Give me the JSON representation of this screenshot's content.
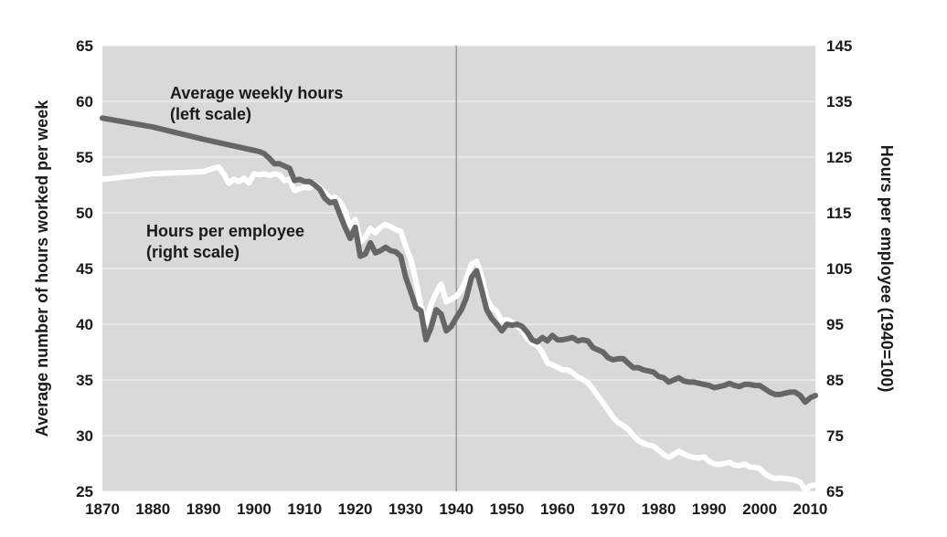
{
  "chart_data": {
    "type": "line",
    "xlim": [
      1870,
      2011
    ],
    "x_ticks": [
      "1870",
      "1880",
      "1890",
      "1900",
      "1910",
      "1920",
      "1930",
      "1940",
      "1950",
      "1960",
      "1970",
      "1980",
      "1990",
      "2000",
      "2010"
    ],
    "ylim_left": [
      25,
      65
    ],
    "y_ticks_left": [
      "25",
      "30",
      "35",
      "40",
      "45",
      "50",
      "55",
      "60",
      "65"
    ],
    "ylim_right": [
      65,
      145
    ],
    "y_ticks_right": [
      "65",
      "75",
      "85",
      "95",
      "105",
      "115",
      "125",
      "135",
      "145"
    ],
    "ylabel_left": "Average number of hours worked per week",
    "ylabel_right": "Hours per employee (1940=100)",
    "grid": true,
    "reference_line_x": 1940,
    "annotations": [
      {
        "series": "weekly",
        "lines": [
          "Average weekly hours",
          "(left scale)"
        ]
      },
      {
        "series": "employee",
        "lines": [
          "Hours per employee",
          "(right scale)"
        ]
      }
    ],
    "series": [
      {
        "axis": "left",
        "color": "#666666",
        "points": [
          [
            1870,
            58.5
          ],
          [
            1880,
            57.7
          ],
          [
            1890,
            56.6
          ],
          [
            1900,
            55.6
          ],
          [
            1901,
            55.5
          ],
          [
            1902,
            55.3
          ],
          [
            1903,
            54.9
          ],
          [
            1904,
            54.4
          ],
          [
            1905,
            54.4
          ],
          [
            1906,
            54.2
          ],
          [
            1907,
            54.0
          ],
          [
            1908,
            52.9
          ],
          [
            1909,
            53.0
          ],
          [
            1910,
            52.8
          ],
          [
            1911,
            52.8
          ],
          [
            1912,
            52.5
          ],
          [
            1913,
            52.1
          ],
          [
            1914,
            51.3
          ],
          [
            1915,
            50.9
          ],
          [
            1916,
            51.0
          ],
          [
            1917,
            49.8
          ],
          [
            1918,
            48.7
          ],
          [
            1919,
            47.7
          ],
          [
            1920,
            48.7
          ],
          [
            1921,
            46.1
          ],
          [
            1922,
            46.3
          ],
          [
            1923,
            47.3
          ],
          [
            1924,
            46.4
          ],
          [
            1925,
            46.6
          ],
          [
            1926,
            46.9
          ],
          [
            1927,
            46.6
          ],
          [
            1928,
            46.5
          ],
          [
            1929,
            46.1
          ],
          [
            1930,
            44.2
          ],
          [
            1931,
            42.9
          ],
          [
            1932,
            41.5
          ],
          [
            1933,
            41.2
          ],
          [
            1934,
            38.6
          ],
          [
            1935,
            39.7
          ],
          [
            1936,
            41.3
          ],
          [
            1937,
            40.9
          ],
          [
            1938,
            39.4
          ],
          [
            1939,
            39.8
          ],
          [
            1940,
            40.6
          ],
          [
            1941,
            41.3
          ],
          [
            1942,
            42.4
          ],
          [
            1943,
            44.2
          ],
          [
            1944,
            44.8
          ],
          [
            1945,
            43.1
          ],
          [
            1946,
            41.3
          ],
          [
            1947,
            40.5
          ],
          [
            1948,
            40.0
          ],
          [
            1949,
            39.4
          ],
          [
            1950,
            40.0
          ],
          [
            1951,
            39.9
          ],
          [
            1952,
            40.0
          ],
          [
            1953,
            39.8
          ],
          [
            1954,
            39.3
          ],
          [
            1955,
            38.6
          ],
          [
            1956,
            38.4
          ],
          [
            1957,
            38.8
          ],
          [
            1958,
            38.5
          ],
          [
            1959,
            39.0
          ],
          [
            1960,
            38.6
          ],
          [
            1961,
            38.6
          ],
          [
            1962,
            38.7
          ],
          [
            1963,
            38.8
          ],
          [
            1964,
            38.5
          ],
          [
            1965,
            38.6
          ],
          [
            1966,
            38.5
          ],
          [
            1967,
            37.9
          ],
          [
            1968,
            37.7
          ],
          [
            1969,
            37.5
          ],
          [
            1970,
            37.0
          ],
          [
            1971,
            36.8
          ],
          [
            1972,
            36.9
          ],
          [
            1973,
            36.9
          ],
          [
            1974,
            36.5
          ],
          [
            1975,
            36.1
          ],
          [
            1976,
            36.1
          ],
          [
            1977,
            35.9
          ],
          [
            1978,
            35.8
          ],
          [
            1979,
            35.7
          ],
          [
            1980,
            35.3
          ],
          [
            1981,
            35.2
          ],
          [
            1982,
            34.8
          ],
          [
            1983,
            35.0
          ],
          [
            1984,
            35.2
          ],
          [
            1985,
            34.9
          ],
          [
            1986,
            34.8
          ],
          [
            1987,
            34.8
          ],
          [
            1988,
            34.7
          ],
          [
            1989,
            34.6
          ],
          [
            1990,
            34.5
          ],
          [
            1991,
            34.3
          ],
          [
            1992,
            34.4
          ],
          [
            1993,
            34.5
          ],
          [
            1994,
            34.7
          ],
          [
            1995,
            34.5
          ],
          [
            1996,
            34.4
          ],
          [
            1997,
            34.6
          ],
          [
            1998,
            34.6
          ],
          [
            1999,
            34.5
          ],
          [
            2000,
            34.5
          ],
          [
            2001,
            34.2
          ],
          [
            2002,
            33.9
          ],
          [
            2003,
            33.7
          ],
          [
            2004,
            33.7
          ],
          [
            2005,
            33.8
          ],
          [
            2006,
            33.9
          ],
          [
            2007,
            33.9
          ],
          [
            2008,
            33.6
          ],
          [
            2009,
            33.0
          ],
          [
            2010,
            33.4
          ],
          [
            2011,
            33.6
          ]
        ]
      },
      {
        "axis": "right",
        "color": "#ffffff",
        "points": [
          [
            1870,
            121.0
          ],
          [
            1875,
            121.5
          ],
          [
            1880,
            122.0
          ],
          [
            1885,
            122.2
          ],
          [
            1890,
            122.4
          ],
          [
            1892,
            123.0
          ],
          [
            1893,
            123.2
          ],
          [
            1894,
            122.0
          ],
          [
            1895,
            120.3
          ],
          [
            1896,
            121.0
          ],
          [
            1897,
            120.6
          ],
          [
            1898,
            121.2
          ],
          [
            1899,
            120.4
          ],
          [
            1900,
            122.0
          ],
          [
            1901,
            121.8
          ],
          [
            1902,
            122.0
          ],
          [
            1903,
            121.7
          ],
          [
            1904,
            122.0
          ],
          [
            1905,
            121.8
          ],
          [
            1906,
            120.8
          ],
          [
            1907,
            121.0
          ],
          [
            1908,
            119.0
          ],
          [
            1909,
            119.3
          ],
          [
            1910,
            119.6
          ],
          [
            1911,
            119.5
          ],
          [
            1912,
            120.2
          ],
          [
            1913,
            119.5
          ],
          [
            1914,
            118.6
          ],
          [
            1915,
            117.6
          ],
          [
            1916,
            117.8
          ],
          [
            1917,
            117.0
          ],
          [
            1918,
            115.4
          ],
          [
            1919,
            112.6
          ],
          [
            1920,
            113.8
          ],
          [
            1921,
            109.8
          ],
          [
            1922,
            110.6
          ],
          [
            1923,
            112.2
          ],
          [
            1924,
            111.4
          ],
          [
            1925,
            112.4
          ],
          [
            1926,
            112.9
          ],
          [
            1927,
            112.5
          ],
          [
            1928,
            112.0
          ],
          [
            1929,
            111.7
          ],
          [
            1930,
            108.9
          ],
          [
            1931,
            106.6
          ],
          [
            1932,
            102.8
          ],
          [
            1933,
            98.2
          ],
          [
            1934,
            95.3
          ],
          [
            1935,
            98.6
          ],
          [
            1936,
            100.6
          ],
          [
            1937,
            102.2
          ],
          [
            1938,
            99.0
          ],
          [
            1939,
            99.5
          ],
          [
            1940,
            100.0
          ],
          [
            1941,
            101.2
          ],
          [
            1942,
            103.2
          ],
          [
            1943,
            105.8
          ],
          [
            1944,
            106.3
          ],
          [
            1945,
            103.6
          ],
          [
            1946,
            99.6
          ],
          [
            1947,
            98.0
          ],
          [
            1948,
            97.3
          ],
          [
            1949,
            95.6
          ],
          [
            1950,
            95.8
          ],
          [
            1951,
            95.4
          ],
          [
            1952,
            94.7
          ],
          [
            1953,
            93.9
          ],
          [
            1954,
            92.4
          ],
          [
            1955,
            91.6
          ],
          [
            1956,
            91.2
          ],
          [
            1957,
            89.9
          ],
          [
            1958,
            88.1
          ],
          [
            1959,
            87.7
          ],
          [
            1960,
            87.3
          ],
          [
            1961,
            86.8
          ],
          [
            1962,
            86.8
          ],
          [
            1963,
            86.3
          ],
          [
            1964,
            85.5
          ],
          [
            1965,
            85.1
          ],
          [
            1966,
            84.5
          ],
          [
            1967,
            83.4
          ],
          [
            1968,
            82.1
          ],
          [
            1969,
            80.9
          ],
          [
            1970,
            79.6
          ],
          [
            1971,
            78.3
          ],
          [
            1972,
            77.3
          ],
          [
            1973,
            76.8
          ],
          [
            1974,
            76.1
          ],
          [
            1975,
            75.0
          ],
          [
            1976,
            74.1
          ],
          [
            1977,
            73.6
          ],
          [
            1978,
            73.3
          ],
          [
            1979,
            73.1
          ],
          [
            1980,
            72.4
          ],
          [
            1981,
            71.6
          ],
          [
            1982,
            71.1
          ],
          [
            1983,
            71.6
          ],
          [
            1984,
            72.2
          ],
          [
            1985,
            71.7
          ],
          [
            1986,
            71.3
          ],
          [
            1987,
            71.1
          ],
          [
            1988,
            71.0
          ],
          [
            1989,
            71.2
          ],
          [
            1990,
            70.4
          ],
          [
            1991,
            69.9
          ],
          [
            1992,
            69.8
          ],
          [
            1993,
            70.0
          ],
          [
            1994,
            70.2
          ],
          [
            1995,
            69.7
          ],
          [
            1996,
            69.6
          ],
          [
            1997,
            69.9
          ],
          [
            1998,
            69.4
          ],
          [
            1999,
            69.3
          ],
          [
            2000,
            69.1
          ],
          [
            2001,
            68.2
          ],
          [
            2002,
            67.6
          ],
          [
            2003,
            67.3
          ],
          [
            2004,
            67.4
          ],
          [
            2005,
            67.3
          ],
          [
            2006,
            67.2
          ],
          [
            2007,
            67.0
          ],
          [
            2008,
            66.6
          ],
          [
            2009,
            65.3
          ],
          [
            2010,
            66.0
          ],
          [
            2011,
            66.2
          ]
        ]
      }
    ]
  }
}
